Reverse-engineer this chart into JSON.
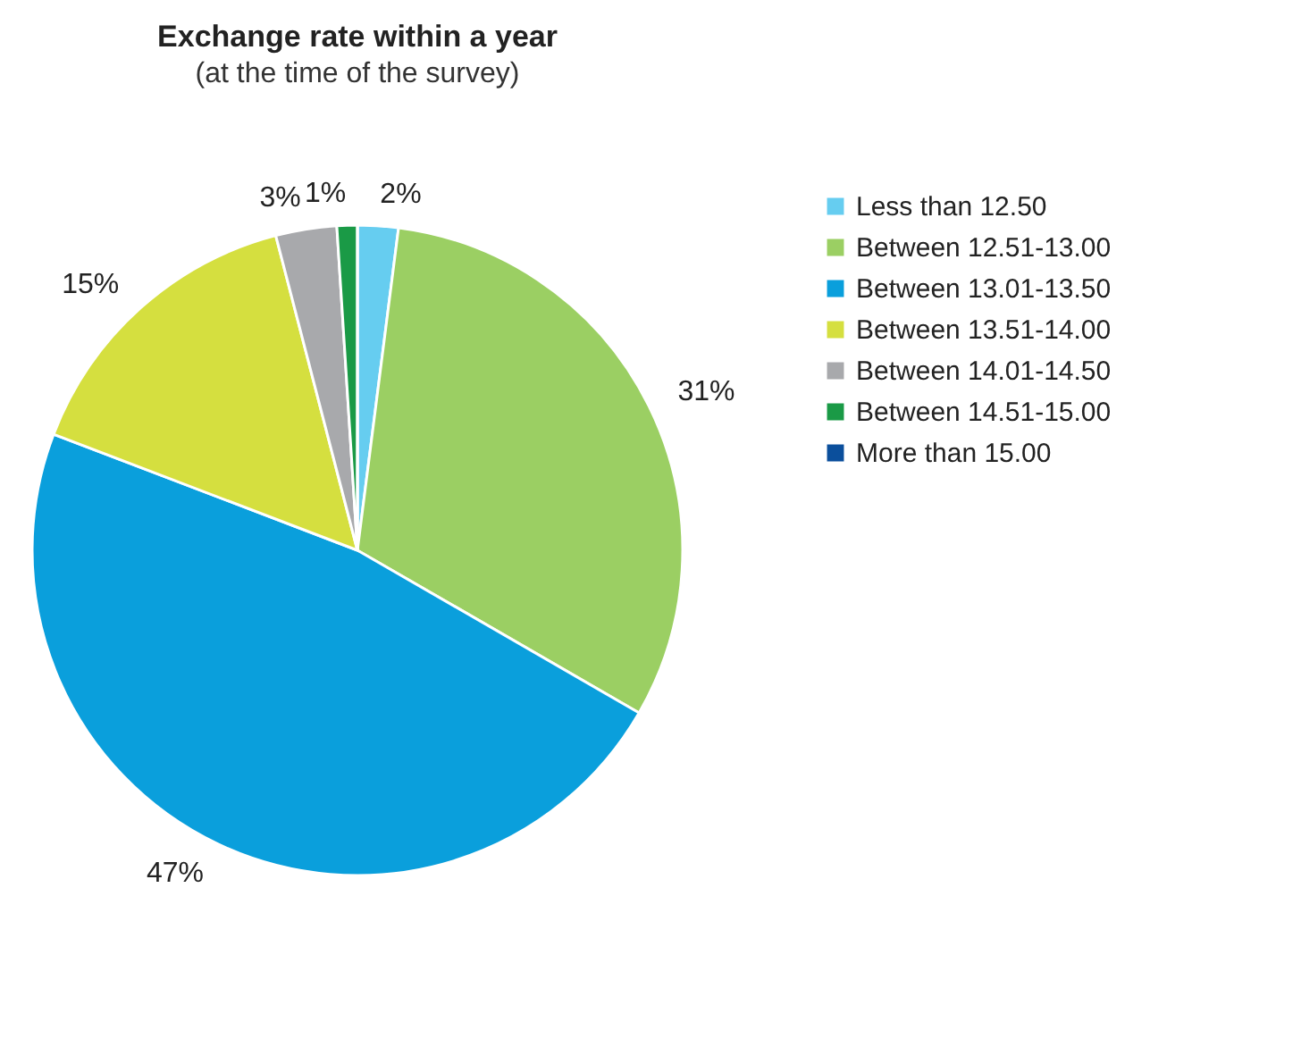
{
  "chart_data": {
    "type": "pie",
    "title": "Exchange rate within a year",
    "subtitle": "(at the time of the survey)",
    "categories": [
      "Less than 12.50",
      "Between 12.51-13.00",
      "Between 13.01-13.50",
      "Between 13.51-14.00",
      "Between 14.01-14.50",
      "Between 14.51-15.00",
      "More than 15.00"
    ],
    "values": [
      2,
      31,
      47,
      15,
      3,
      1,
      0
    ],
    "value_labels": [
      "2%",
      "31%",
      "47%",
      "15%",
      "3%",
      "1%",
      null
    ],
    "colors": [
      "#66cdf0",
      "#9bcf63",
      "#0a9fdc",
      "#d5df3f",
      "#a8a9ac",
      "#1a9a46",
      "#0b4f9c"
    ],
    "legend": "right"
  }
}
